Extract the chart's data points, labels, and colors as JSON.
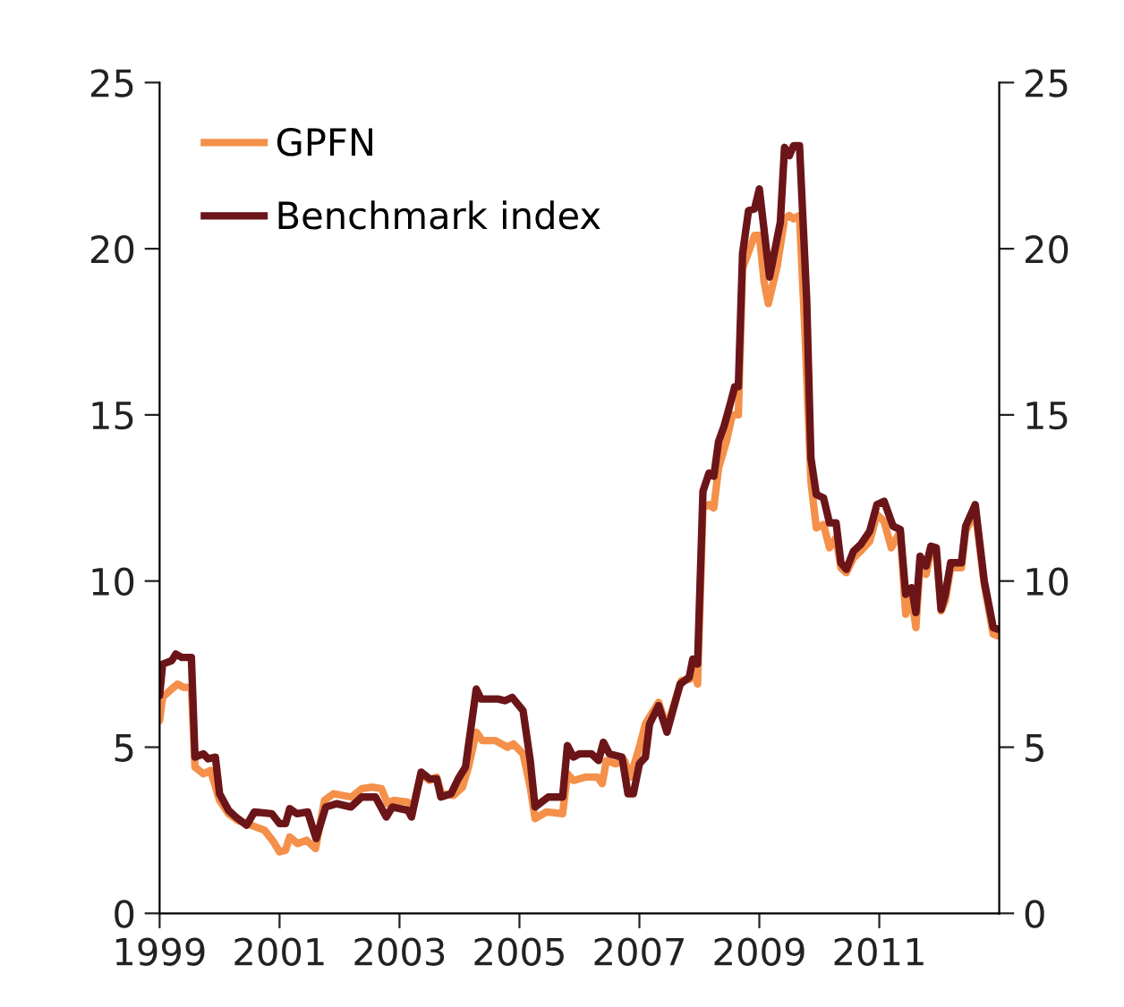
{
  "chart_data": {
    "type": "line",
    "xlim": [
      1999,
      2013
    ],
    "xticks": [
      1999,
      2001,
      2003,
      2005,
      2007,
      2009,
      2011
    ],
    "ylim": [
      0,
      25
    ],
    "yticks": [
      0,
      5,
      10,
      15,
      20,
      25
    ],
    "y2lim": [
      0,
      25
    ],
    "y2ticks": [
      0,
      5,
      10,
      15,
      20,
      25
    ],
    "legend": "top left",
    "grid": false,
    "marker": "none",
    "line_style": "solid",
    "series": [
      {
        "name": "GPFN",
        "color": "#f4904a",
        "x": [
          1999.0,
          1999.05,
          1999.2,
          1999.3,
          1999.4,
          1999.53,
          1999.59,
          1999.73,
          1999.85,
          2000.0,
          2000.15,
          2000.3,
          2000.45,
          2000.6,
          2000.75,
          2000.9,
          2001.0,
          2001.1,
          2001.17,
          2001.3,
          2001.45,
          2001.6,
          2001.75,
          2001.9,
          2002.2,
          2002.37,
          2002.55,
          2002.7,
          2002.8,
          2002.9,
          2003.14,
          2003.2,
          2003.36,
          2003.5,
          2003.62,
          2003.7,
          2003.9,
          2004.05,
          2004.15,
          2004.28,
          2004.38,
          2004.6,
          2004.8,
          2004.9,
          2005.06,
          2005.18,
          2005.26,
          2005.45,
          2005.72,
          2005.8,
          2005.9,
          2006.1,
          2006.3,
          2006.38,
          2006.45,
          2006.6,
          2006.75,
          2006.85,
          2007.0,
          2007.1,
          2007.2,
          2007.32,
          2007.46,
          2007.58,
          2007.7,
          2007.85,
          2007.92,
          2007.97,
          2008.06,
          2008.16,
          2008.24,
          2008.32,
          2008.45,
          2008.55,
          2008.65,
          2008.72,
          2008.82,
          2008.92,
          2009.0,
          2009.08,
          2009.15,
          2009.3,
          2009.42,
          2009.5,
          2009.57,
          2009.67,
          2009.76,
          2009.86,
          2009.95,
          2010.07,
          2010.17,
          2010.28,
          2010.36,
          2010.45,
          2010.57,
          2010.69,
          2010.84,
          2010.96,
          2011.08,
          2011.2,
          2011.35,
          2011.44,
          2011.54,
          2011.61,
          2011.68,
          2011.78,
          2011.86,
          2011.95,
          2012.03,
          2012.1,
          2012.19,
          2012.37,
          2012.44,
          2012.6,
          2012.75,
          2012.9,
          2012.98
        ],
        "values": [
          5.8,
          6.5,
          6.75,
          6.9,
          6.8,
          6.8,
          4.4,
          4.2,
          4.3,
          3.4,
          3.0,
          2.8,
          2.7,
          2.6,
          2.5,
          2.15,
          1.85,
          1.9,
          2.3,
          2.1,
          2.2,
          1.95,
          3.4,
          3.6,
          3.5,
          3.75,
          3.8,
          3.75,
          3.3,
          3.4,
          3.35,
          3.0,
          4.2,
          4.0,
          4.1,
          3.6,
          3.55,
          3.8,
          4.4,
          5.45,
          5.2,
          5.2,
          5.0,
          5.1,
          4.8,
          3.8,
          2.85,
          3.05,
          3.0,
          4.2,
          4.0,
          4.1,
          4.1,
          3.9,
          4.6,
          4.5,
          4.6,
          4.1,
          5.0,
          5.7,
          6.0,
          6.35,
          5.6,
          6.3,
          7.0,
          7.05,
          7.5,
          6.9,
          12.2,
          12.3,
          12.2,
          13.4,
          14.2,
          15.0,
          15.0,
          19.4,
          19.9,
          20.4,
          20.4,
          19.0,
          18.35,
          19.5,
          20.9,
          21.0,
          20.9,
          21.0,
          17.5,
          13.0,
          11.6,
          11.7,
          11.0,
          11.3,
          10.4,
          10.25,
          10.7,
          10.9,
          11.2,
          12.0,
          11.8,
          11.0,
          11.5,
          9.0,
          9.5,
          8.6,
          10.5,
          10.2,
          10.9,
          10.9,
          9.1,
          9.4,
          10.4,
          10.4,
          11.5,
          12.1,
          9.9,
          8.4,
          8.35
        ]
      },
      {
        "name": "Benchmark index",
        "color": "#6b1519",
        "x": [
          1999.0,
          1999.05,
          1999.2,
          1999.27,
          1999.37,
          1999.53,
          1999.59,
          1999.73,
          1999.81,
          1999.93,
          2000.0,
          2000.15,
          2000.27,
          2000.45,
          2000.58,
          2000.87,
          2001.0,
          2001.1,
          2001.17,
          2001.29,
          2001.47,
          2001.61,
          2001.77,
          2001.95,
          2002.19,
          2002.37,
          2002.6,
          2002.78,
          2002.88,
          2003.14,
          2003.2,
          2003.36,
          2003.5,
          2003.62,
          2003.69,
          2003.86,
          2003.98,
          2004.1,
          2004.28,
          2004.36,
          2004.64,
          2004.76,
          2004.88,
          2005.06,
          2005.18,
          2005.26,
          2005.48,
          2005.72,
          2005.8,
          2005.9,
          2006.0,
          2006.2,
          2006.32,
          2006.4,
          2006.5,
          2006.71,
          2006.81,
          2006.9,
          2007.0,
          2007.1,
          2007.17,
          2007.32,
          2007.46,
          2007.58,
          2007.68,
          2007.83,
          2007.89,
          2007.97,
          2008.06,
          2008.16,
          2008.24,
          2008.32,
          2008.41,
          2008.51,
          2008.59,
          2008.65,
          2008.72,
          2008.82,
          2008.92,
          2009.0,
          2009.17,
          2009.35,
          2009.42,
          2009.5,
          2009.57,
          2009.67,
          2009.79,
          2009.86,
          2009.95,
          2010.07,
          2010.17,
          2010.28,
          2010.36,
          2010.45,
          2010.57,
          2010.69,
          2010.84,
          2010.96,
          2011.08,
          2011.23,
          2011.35,
          2011.44,
          2011.54,
          2011.61,
          2011.68,
          2011.78,
          2011.86,
          2011.95,
          2012.03,
          2012.1,
          2012.19,
          2012.37,
          2012.44,
          2012.6,
          2012.75,
          2012.9,
          2012.98
        ],
        "values": [
          6.55,
          7.5,
          7.6,
          7.8,
          7.7,
          7.7,
          4.7,
          4.8,
          4.65,
          4.7,
          3.6,
          3.1,
          2.9,
          2.65,
          3.05,
          3.0,
          2.7,
          2.7,
          3.15,
          3.0,
          3.05,
          2.25,
          3.2,
          3.3,
          3.2,
          3.5,
          3.5,
          2.9,
          3.2,
          3.1,
          2.9,
          4.25,
          4.05,
          4.05,
          3.5,
          3.6,
          4.05,
          4.4,
          6.75,
          6.45,
          6.45,
          6.4,
          6.5,
          6.1,
          4.6,
          3.2,
          3.5,
          3.5,
          5.05,
          4.7,
          4.8,
          4.8,
          4.6,
          5.15,
          4.8,
          4.7,
          3.6,
          3.6,
          4.5,
          4.7,
          5.7,
          6.25,
          5.45,
          6.25,
          6.9,
          7.1,
          7.65,
          7.5,
          12.7,
          13.25,
          13.15,
          14.2,
          14.65,
          15.3,
          15.85,
          15.85,
          19.85,
          21.15,
          21.2,
          21.8,
          19.15,
          20.8,
          23.05,
          22.8,
          23.1,
          23.1,
          18.45,
          13.7,
          12.6,
          12.5,
          11.75,
          11.75,
          10.55,
          10.35,
          10.9,
          11.1,
          11.5,
          12.3,
          12.4,
          11.65,
          11.55,
          9.6,
          9.8,
          9.05,
          10.75,
          10.45,
          11.05,
          11.0,
          9.15,
          9.6,
          10.55,
          10.55,
          11.65,
          12.3,
          10.0,
          8.6,
          8.55
        ]
      }
    ]
  }
}
